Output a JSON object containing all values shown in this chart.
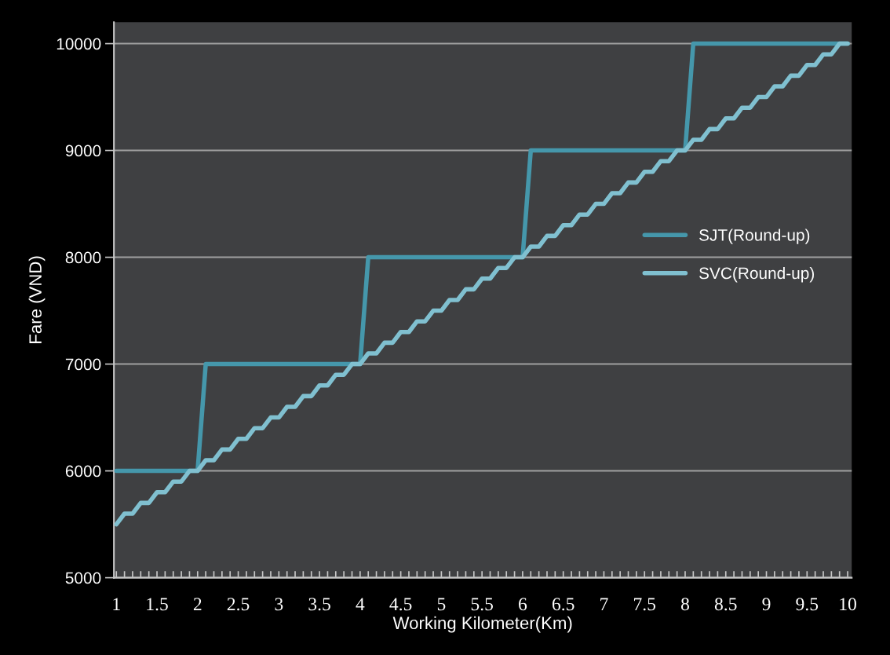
{
  "chart_data": {
    "type": "line",
    "xlabel": "Working Kilometer(Km)",
    "ylabel": "Fare (VND)",
    "x": [
      1,
      1.1,
      1.2,
      1.3,
      1.4,
      1.5,
      1.6,
      1.7,
      1.8,
      1.9,
      2,
      2.1,
      2.2,
      2.3,
      2.4,
      2.5,
      2.6,
      2.7,
      2.8,
      2.9,
      3,
      3.1,
      3.2,
      3.3,
      3.4,
      3.5,
      3.6,
      3.7,
      3.8,
      3.9,
      4,
      4.1,
      4.2,
      4.3,
      4.4,
      4.5,
      4.6,
      4.7,
      4.8,
      4.9,
      5,
      5.1,
      5.2,
      5.3,
      5.4,
      5.5,
      5.6,
      5.7,
      5.8,
      5.9,
      6,
      6.1,
      6.2,
      6.3,
      6.4,
      6.5,
      6.6,
      6.7,
      6.8,
      6.9,
      7,
      7.1,
      7.2,
      7.3,
      7.4,
      7.5,
      7.6,
      7.7,
      7.8,
      7.9,
      8,
      8.1,
      8.2,
      8.3,
      8.4,
      8.5,
      8.6,
      8.7,
      8.8,
      8.9,
      9,
      9.1,
      9.2,
      9.3,
      9.4,
      9.5,
      9.6,
      9.7,
      9.8,
      9.9,
      10
    ],
    "series": [
      {
        "name": "SJT(Round-up)",
        "color": "#4597ab",
        "values": [
          6000,
          6000,
          6000,
          6000,
          6000,
          6000,
          6000,
          6000,
          6000,
          6000,
          6000,
          7000,
          7000,
          7000,
          7000,
          7000,
          7000,
          7000,
          7000,
          7000,
          7000,
          7000,
          7000,
          7000,
          7000,
          7000,
          7000,
          7000,
          7000,
          7000,
          7000,
          8000,
          8000,
          8000,
          8000,
          8000,
          8000,
          8000,
          8000,
          8000,
          8000,
          8000,
          8000,
          8000,
          8000,
          8000,
          8000,
          8000,
          8000,
          8000,
          8000,
          9000,
          9000,
          9000,
          9000,
          9000,
          9000,
          9000,
          9000,
          9000,
          9000,
          9000,
          9000,
          9000,
          9000,
          9000,
          9000,
          9000,
          9000,
          9000,
          9000,
          10000,
          10000,
          10000,
          10000,
          10000,
          10000,
          10000,
          10000,
          10000,
          10000,
          10000,
          10000,
          10000,
          10000,
          10000,
          10000,
          10000,
          10000,
          10000,
          10000
        ]
      },
      {
        "name": "SVC(Round-up)",
        "color": "#80c0d0",
        "values": [
          5500,
          5600,
          5600,
          5700,
          5700,
          5800,
          5800,
          5900,
          5900,
          6000,
          6000,
          6100,
          6100,
          6200,
          6200,
          6300,
          6300,
          6400,
          6400,
          6500,
          6500,
          6600,
          6600,
          6700,
          6700,
          6800,
          6800,
          6900,
          6900,
          7000,
          7000,
          7100,
          7100,
          7200,
          7200,
          7300,
          7300,
          7400,
          7400,
          7500,
          7500,
          7600,
          7600,
          7700,
          7700,
          7800,
          7800,
          7900,
          7900,
          8000,
          8000,
          8100,
          8100,
          8200,
          8200,
          8300,
          8300,
          8400,
          8400,
          8500,
          8500,
          8600,
          8600,
          8700,
          8700,
          8800,
          8800,
          8900,
          8900,
          9000,
          9000,
          9100,
          9100,
          9200,
          9200,
          9300,
          9300,
          9400,
          9400,
          9500,
          9500,
          9600,
          9600,
          9700,
          9700,
          9800,
          9800,
          9900,
          9900,
          10000,
          10000
        ]
      }
    ],
    "xlim": [
      0.97,
      10.05
    ],
    "ylim": [
      5000,
      10200
    ],
    "xticks": [
      1,
      {
        "value": 1.1,
        "label": null
      },
      {
        "value": 1.2,
        "label": null
      },
      {
        "value": 1.3,
        "label": null
      },
      {
        "value": 1.4,
        "label": null
      },
      1.5,
      {
        "value": 1.6,
        "label": null
      },
      {
        "value": 1.7,
        "label": null
      },
      {
        "value": 1.8,
        "label": null
      },
      {
        "value": 1.9,
        "label": null
      },
      2,
      {
        "value": 2.1,
        "label": null
      },
      {
        "value": 2.2,
        "label": null
      },
      {
        "value": 2.3,
        "label": null
      },
      {
        "value": 2.4,
        "label": null
      },
      2.5,
      {
        "value": 2.6,
        "label": null
      },
      {
        "value": 2.7,
        "label": null
      },
      {
        "value": 2.8,
        "label": null
      },
      {
        "value": 2.9,
        "label": null
      },
      3,
      {
        "value": 3.1,
        "label": null
      },
      {
        "value": 3.2,
        "label": null
      },
      {
        "value": 3.3,
        "label": null
      },
      {
        "value": 3.4,
        "label": null
      },
      3.5,
      {
        "value": 3.6,
        "label": null
      },
      {
        "value": 3.7,
        "label": null
      },
      {
        "value": 3.8,
        "label": null
      },
      {
        "value": 3.9,
        "label": null
      },
      4,
      {
        "value": 4.1,
        "label": null
      },
      {
        "value": 4.2,
        "label": null
      },
      {
        "value": 4.3,
        "label": null
      },
      {
        "value": 4.4,
        "label": null
      },
      4.5,
      {
        "value": 4.6,
        "label": null
      },
      {
        "value": 4.7,
        "label": null
      },
      {
        "value": 4.8,
        "label": null
      },
      {
        "value": 4.9,
        "label": null
      },
      5,
      {
        "value": 5.1,
        "label": null
      },
      {
        "value": 5.2,
        "label": null
      },
      {
        "value": 5.3,
        "label": null
      },
      {
        "value": 5.4,
        "label": null
      },
      5.5,
      {
        "value": 5.6,
        "label": null
      },
      {
        "value": 5.7,
        "label": null
      },
      {
        "value": 5.8,
        "label": null
      },
      {
        "value": 5.9,
        "label": null
      },
      6,
      {
        "value": 6.1,
        "label": null
      },
      {
        "value": 6.2,
        "label": null
      },
      {
        "value": 6.3,
        "label": null
      },
      {
        "value": 6.4,
        "label": null
      },
      6.5,
      {
        "value": 6.6,
        "label": null
      },
      {
        "value": 6.7,
        "label": null
      },
      {
        "value": 6.8,
        "label": null
      },
      {
        "value": 6.9,
        "label": null
      },
      7,
      {
        "value": 7.1,
        "label": null
      },
      {
        "value": 7.2,
        "label": null
      },
      {
        "value": 7.3,
        "label": null
      },
      {
        "value": 7.4,
        "label": null
      },
      7.5,
      {
        "value": 7.6,
        "label": null
      },
      {
        "value": 7.7,
        "label": null
      },
      {
        "value": 7.8,
        "label": null
      },
      {
        "value": 7.9,
        "label": null
      },
      8,
      {
        "value": 8.1,
        "label": null
      },
      {
        "value": 8.2,
        "label": null
      },
      {
        "value": 8.3,
        "label": null
      },
      {
        "value": 8.4,
        "label": null
      },
      8.5,
      {
        "value": 8.6,
        "label": null
      },
      {
        "value": 8.7,
        "label": null
      },
      {
        "value": 8.8,
        "label": null
      },
      {
        "value": 8.9,
        "label": null
      },
      9,
      {
        "value": 9.1,
        "label": null
      },
      {
        "value": 9.2,
        "label": null
      },
      {
        "value": 9.3,
        "label": null
      },
      {
        "value": 9.4,
        "label": null
      },
      9.5,
      {
        "value": 9.6,
        "label": null
      },
      {
        "value": 9.7,
        "label": null
      },
      {
        "value": 9.8,
        "label": null
      },
      {
        "value": 9.9,
        "label": null
      },
      10
    ],
    "yticks": [
      5000,
      6000,
      7000,
      8000,
      9000,
      10000
    ],
    "grid": "y",
    "legend": "right",
    "marker": "none",
    "line_style": "solid"
  }
}
